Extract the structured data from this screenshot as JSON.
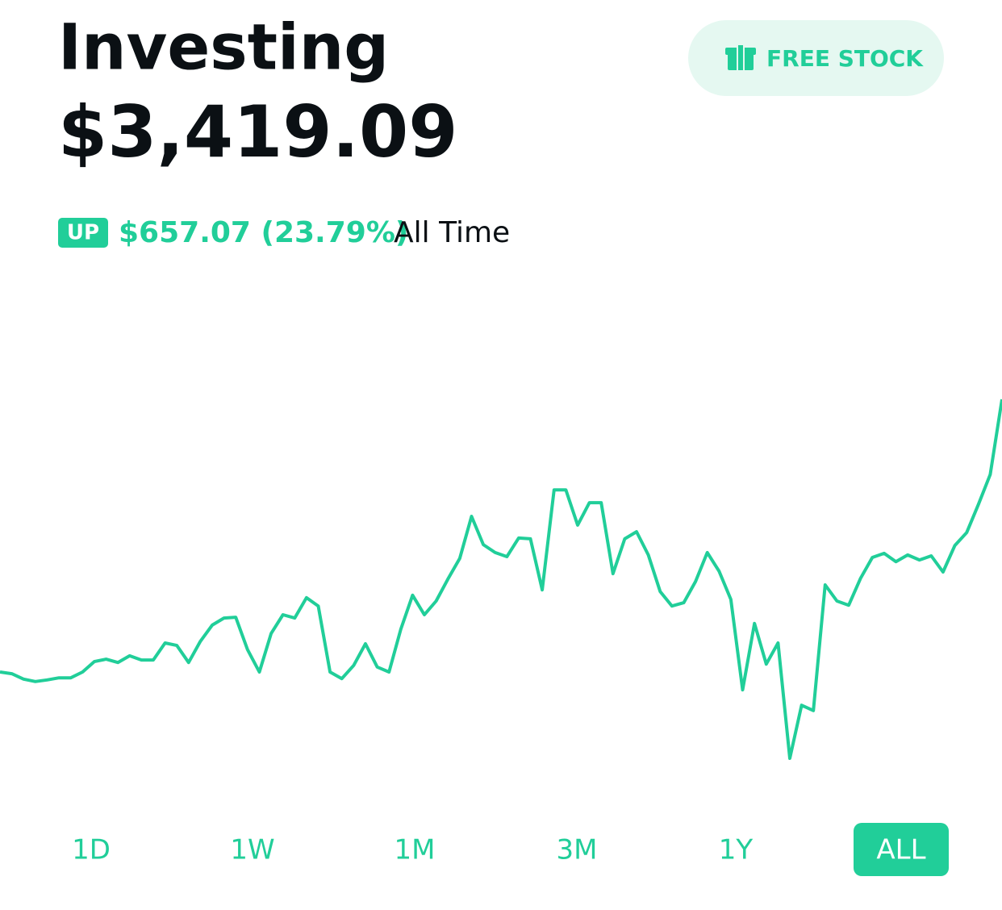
{
  "header": {
    "title": "Investing",
    "balance": "$3,419.09",
    "button": "FREE STOCK"
  },
  "change": {
    "badge": "UP",
    "amount": "$657.07 (23.79%)",
    "period": "All Time"
  },
  "chart_data": {
    "type": "line",
    "color": "#21ce99",
    "values": [
      2762.02,
      2758,
      2745,
      2739,
      2743,
      2748,
      2748,
      2762,
      2787,
      2793,
      2785,
      2801,
      2791,
      2791,
      2832,
      2826,
      2785,
      2836,
      2875,
      2892,
      2894,
      2816,
      2762,
      2855,
      2900,
      2892,
      2941,
      2921,
      2762,
      2746,
      2778,
      2830,
      2774,
      2762,
      2865,
      2947,
      2900,
      2933,
      2986,
      3036,
      3137,
      3069,
      3050,
      3040,
      3085,
      3083,
      2960,
      3201,
      3201,
      3116,
      3170,
      3170,
      2999,
      3083,
      3100,
      3044,
      2956,
      2921,
      2929,
      2980,
      3050,
      3005,
      2937,
      2719,
      2879,
      2781,
      2832,
      2554,
      2682,
      2669,
      2972,
      2933,
      2923,
      2988,
      3038,
      3048,
      3028,
      3044,
      3032,
      3042,
      3003,
      3067,
      3098,
      3166,
      3238,
      3419.09
    ]
  },
  "ranges": {
    "labels": [
      "1D",
      "1W",
      "1M",
      "3M",
      "1Y",
      "ALL"
    ],
    "selected": 5
  }
}
